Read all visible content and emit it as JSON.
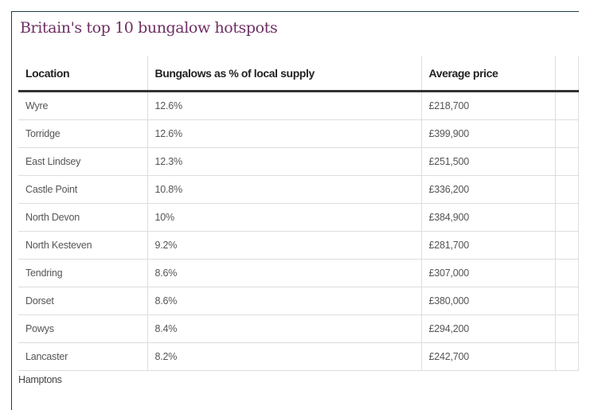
{
  "title": "Britain's top 10 bungalow hotspots",
  "columns": [
    "Location",
    "Bungalows as % of local supply",
    "Average price",
    ""
  ],
  "rows": [
    [
      "Wyre",
      "12.6%",
      "£218,700"
    ],
    [
      "Torridge",
      "12.6%",
      "£399,900"
    ],
    [
      "East Lindsey",
      "12.3%",
      "£251,500"
    ],
    [
      "Castle Point",
      "10.8%",
      "£336,200"
    ],
    [
      "North Devon",
      "10%",
      "£384,900"
    ],
    [
      "North Kesteven",
      "9.2%",
      "£281,700"
    ],
    [
      "Tendring",
      "8.6%",
      "£307,000"
    ],
    [
      "Dorset",
      "8.6%",
      "£380,000"
    ],
    [
      "Powys",
      "8.4%",
      "£294,200"
    ],
    [
      "Lancaster",
      "8.2%",
      "£242,700"
    ]
  ],
  "source": "Hamptons"
}
